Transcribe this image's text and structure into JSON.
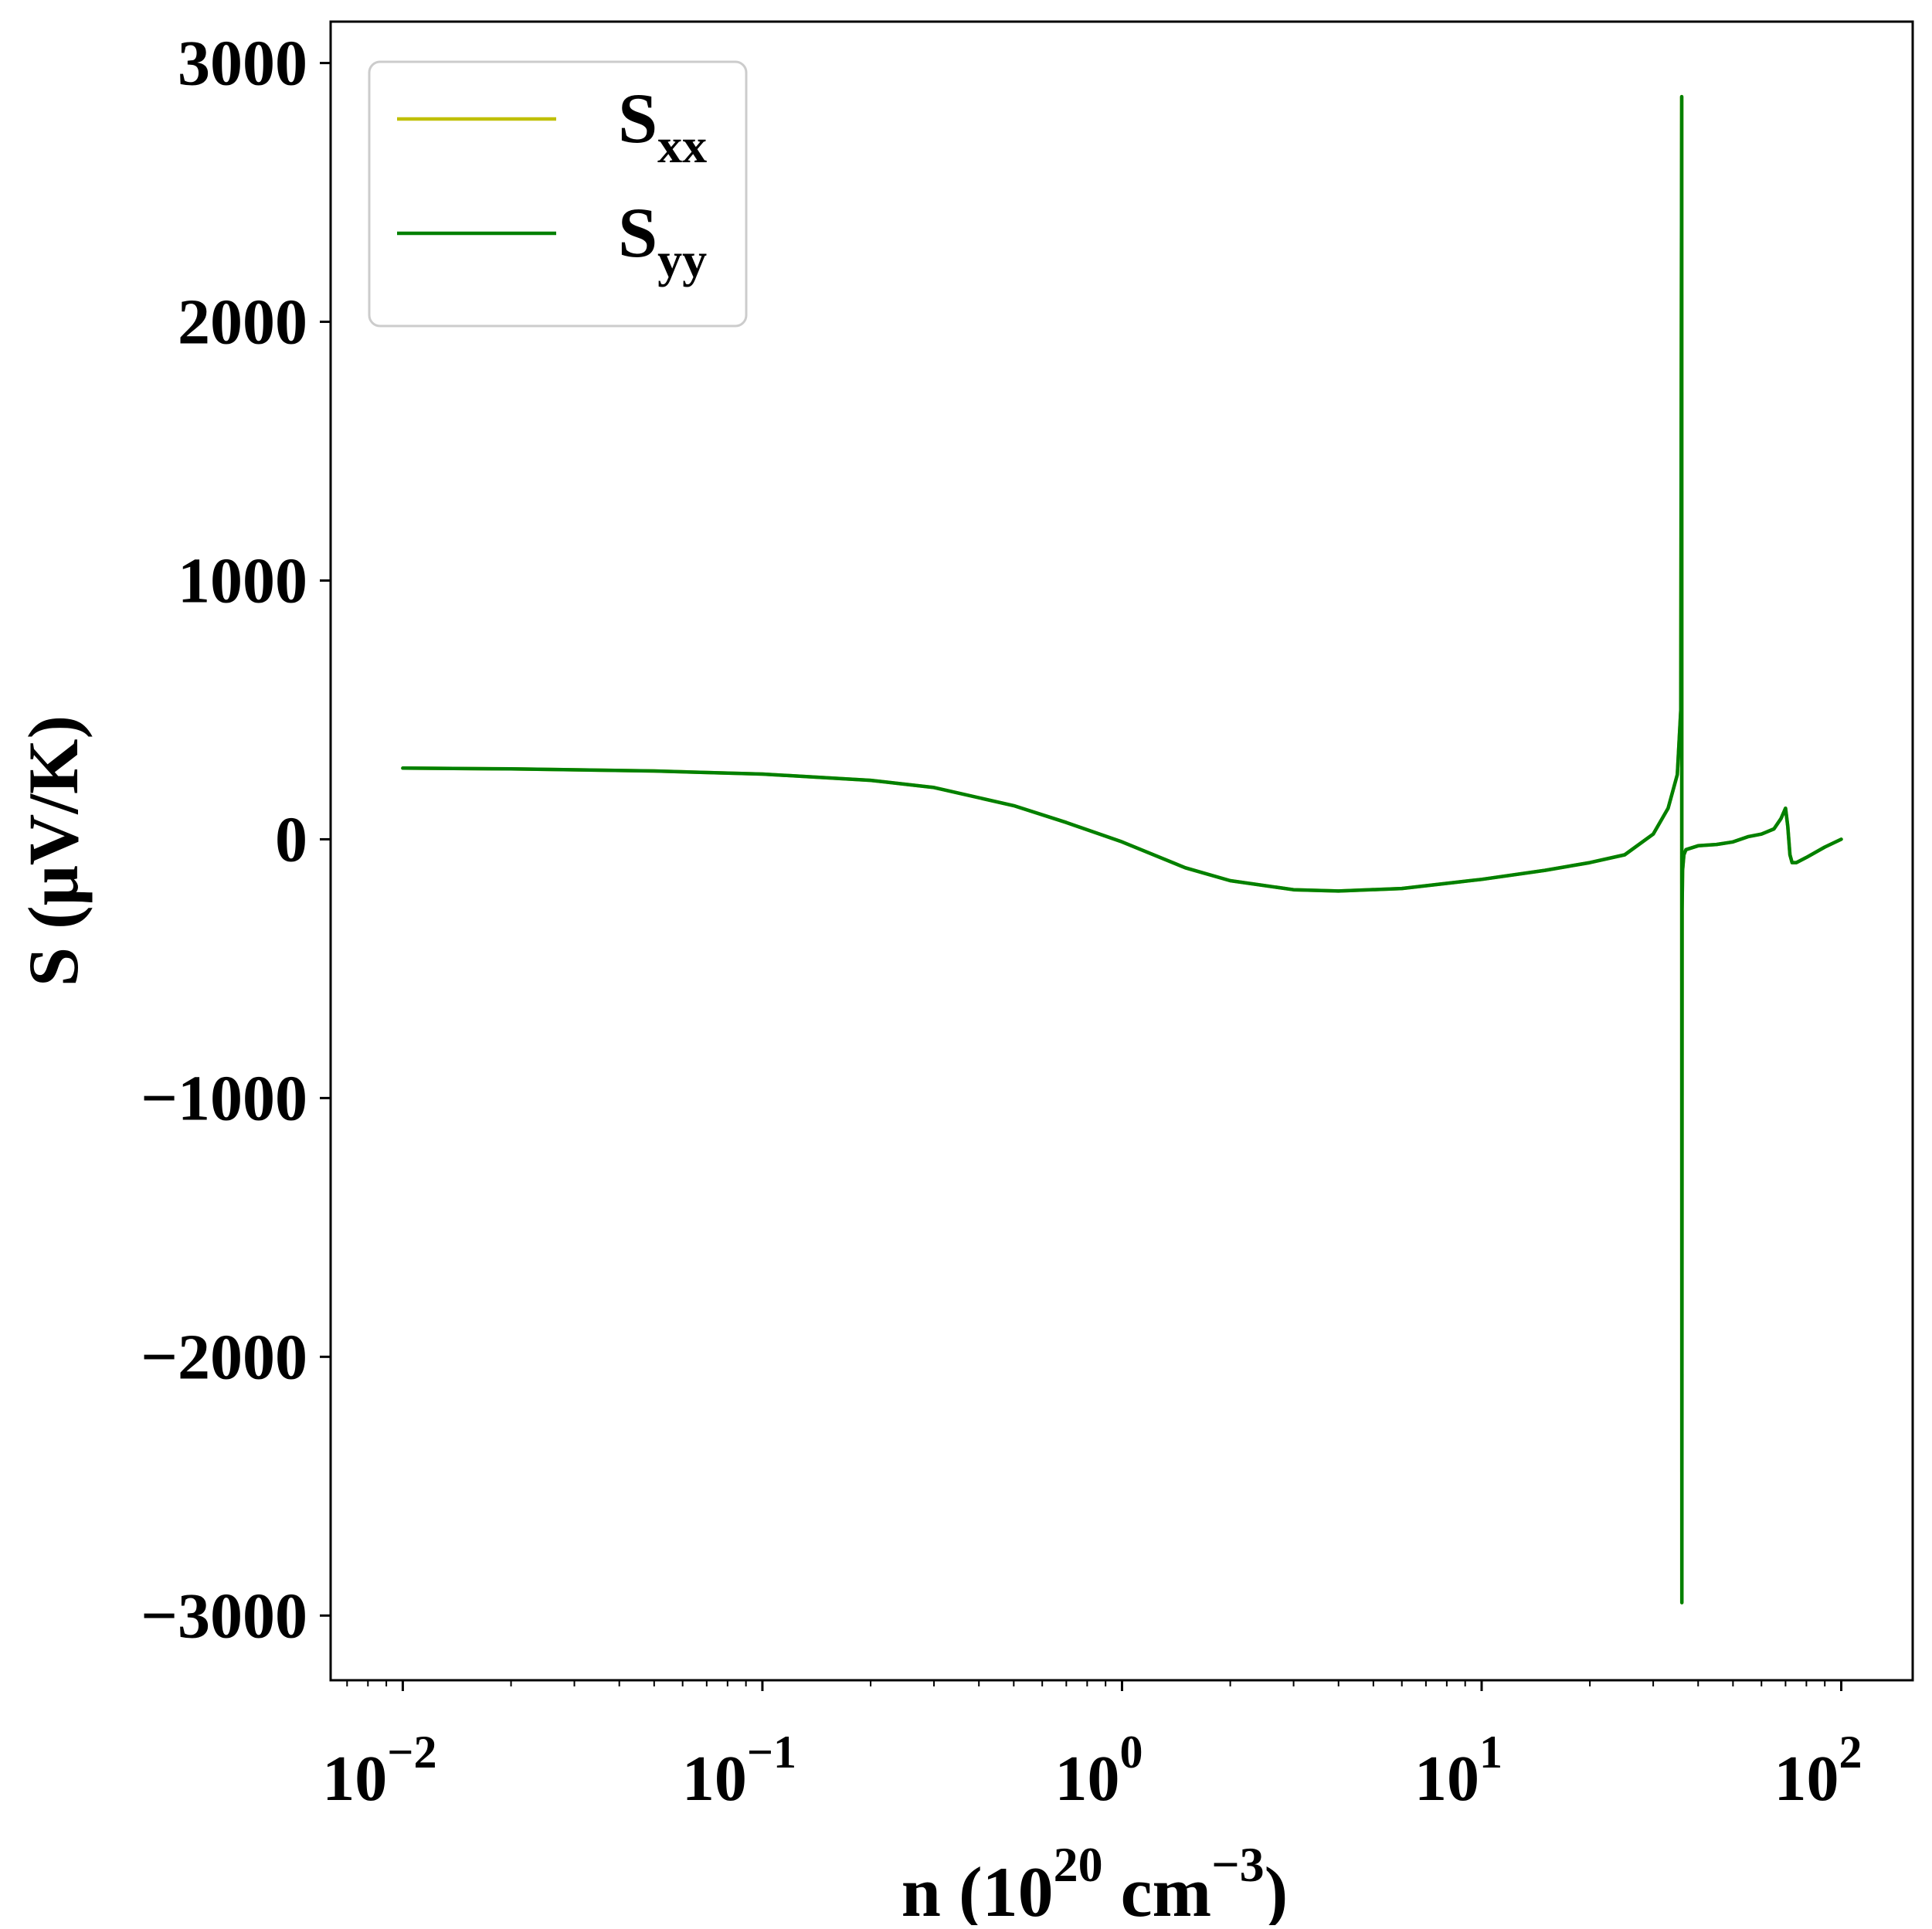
{
  "chart_data": {
    "type": "line",
    "title": "",
    "xlabel": {
      "base": "n (10",
      "sup1": "20",
      "mid": " cm",
      "sup2": "−3",
      "end": ")"
    },
    "ylabel": "S (μV/K)",
    "xscale": "log",
    "xlim": [
      0.0063,
      158
    ],
    "ylim": [
      -3250,
      3160
    ],
    "x_ticks": [
      {
        "value": 0.01,
        "base": "10",
        "exp": "−2"
      },
      {
        "value": 0.1,
        "base": "10",
        "exp": "−1"
      },
      {
        "value": 1,
        "base": "10",
        "exp": "0"
      },
      {
        "value": 10,
        "base": "10",
        "exp": "1"
      },
      {
        "value": 100,
        "base": "10",
        "exp": "2"
      }
    ],
    "y_ticks": [
      {
        "value": 3000,
        "label": "3000"
      },
      {
        "value": 2000,
        "label": "2000"
      },
      {
        "value": 1000,
        "label": "1000"
      },
      {
        "value": 0,
        "label": "0"
      },
      {
        "value": -1000,
        "label": "−1000"
      },
      {
        "value": -2000,
        "label": "−2000"
      },
      {
        "value": -3000,
        "label": "−3000"
      }
    ],
    "grid": false,
    "legend": {
      "position": "top-left",
      "entries": [
        {
          "base": "S",
          "sub": "xx",
          "color": "#bfbf00"
        },
        {
          "base": "S",
          "sub": "yy",
          "color": "#008000"
        }
      ]
    },
    "series": [
      {
        "name": "Sxx",
        "color": "#bfbf00",
        "x": [
          0.01,
          0.02,
          0.05,
          0.1,
          0.2,
          0.3,
          0.5,
          0.7,
          1.0,
          1.5,
          2.0,
          3.0,
          4.0,
          6.0,
          10,
          15,
          20,
          25,
          30,
          33,
          35,
          35.8,
          36.0,
          36.05,
          36.1,
          36.2,
          36.5,
          37,
          40,
          45,
          50,
          55,
          60,
          65,
          68,
          70,
          71,
          72,
          73,
          75,
          80,
          90,
          100
        ],
        "y": [
          275,
          272,
          264,
          252,
          228,
          200,
          130,
          65,
          -10,
          -110,
          -160,
          -195,
          -200,
          -190,
          -155,
          -120,
          -90,
          -60,
          20,
          120,
          250,
          500,
          2870,
          -2950,
          -270,
          -120,
          -60,
          -40,
          -25,
          -20,
          -10,
          10,
          20,
          40,
          80,
          120,
          50,
          -60,
          -90,
          -90,
          -70,
          -30,
          0
        ]
      },
      {
        "name": "Syy",
        "color": "#008000",
        "x": [
          0.01,
          0.02,
          0.05,
          0.1,
          0.2,
          0.3,
          0.5,
          0.7,
          1.0,
          1.5,
          2.0,
          3.0,
          4.0,
          6.0,
          10,
          15,
          20,
          25,
          30,
          33,
          35,
          35.8,
          36.0,
          36.05,
          36.1,
          36.2,
          36.5,
          37,
          40,
          45,
          50,
          55,
          60,
          65,
          68,
          70,
          71,
          72,
          73,
          75,
          80,
          90,
          100
        ],
        "y": [
          275,
          272,
          264,
          252,
          228,
          200,
          130,
          65,
          -10,
          -110,
          -160,
          -195,
          -200,
          -190,
          -155,
          -120,
          -90,
          -60,
          20,
          120,
          250,
          500,
          2870,
          -2950,
          -270,
          -120,
          -60,
          -40,
          -25,
          -20,
          -10,
          10,
          20,
          40,
          80,
          120,
          50,
          -60,
          -90,
          -90,
          -70,
          -30,
          0
        ]
      }
    ]
  }
}
